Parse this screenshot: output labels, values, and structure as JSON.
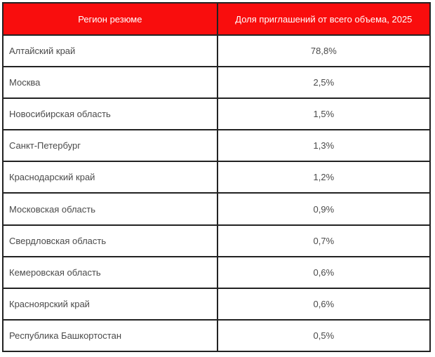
{
  "colors": {
    "header_bg": "#f90d0d",
    "header_text": "#ffffff",
    "border": "#222222",
    "cell_text": "#4a4a4a"
  },
  "table": {
    "columns": [
      "Регион резюме",
      "Доля приглашений от всего объема, 2025"
    ],
    "rows": [
      {
        "region": "Алтайский край",
        "share": "78,8%"
      },
      {
        "region": "Москва",
        "share": "2,5%"
      },
      {
        "region": "Новосибирская область",
        "share": "1,5%"
      },
      {
        "region": "Санкт-Петербург",
        "share": "1,3%"
      },
      {
        "region": "Краснодарский край",
        "share": "1,2%"
      },
      {
        "region": "Московская область",
        "share": "0,9%"
      },
      {
        "region": "Свердловская область",
        "share": "0,7%"
      },
      {
        "region": "Кемеровская область",
        "share": "0,6%"
      },
      {
        "region": "Красноярский край",
        "share": "0,6%"
      },
      {
        "region": "Республика Башкортостан",
        "share": "0,5%"
      }
    ]
  },
  "chart_data": {
    "type": "table",
    "title": "",
    "columns": [
      "Регион резюме",
      "Доля приглашений от всего объема, 2025"
    ],
    "categories": [
      "Алтайский край",
      "Москва",
      "Новосибирская область",
      "Санкт-Петербург",
      "Краснодарский край",
      "Московская область",
      "Свердловская область",
      "Кемеровская область",
      "Красноярский край",
      "Республика Башкортостан"
    ],
    "values": [
      78.8,
      2.5,
      1.5,
      1.3,
      1.2,
      0.9,
      0.7,
      0.6,
      0.6,
      0.5
    ],
    "value_unit": "%",
    "value_format": "comma-decimal percent"
  }
}
